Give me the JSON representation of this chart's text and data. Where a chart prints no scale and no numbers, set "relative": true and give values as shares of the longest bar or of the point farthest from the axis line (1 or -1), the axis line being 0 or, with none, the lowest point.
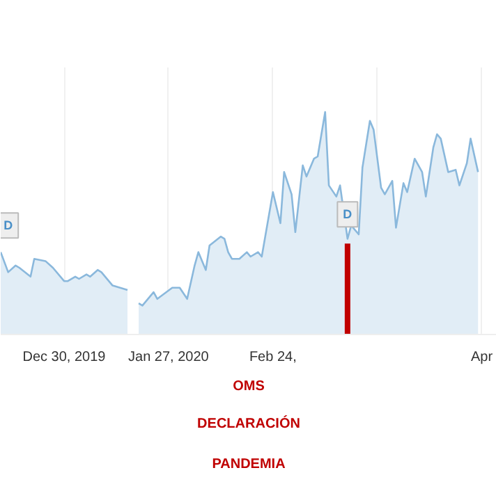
{
  "chart_data": {
    "type": "area",
    "relative": true,
    "grid": "x",
    "x": [
      "2019-12-13",
      "2019-12-15",
      "2019-12-17",
      "2019-12-18",
      "2019-12-21",
      "2019-12-22",
      "2019-12-25",
      "2019-12-27",
      "2019-12-30",
      "2019-12-31",
      "2020-01-02",
      "2020-01-03",
      "2020-01-05",
      "2020-01-06",
      "2020-01-08",
      "2020-01-09",
      "2020-01-12",
      "2020-01-14",
      "2020-01-16",
      "2020-01-17",
      "2020-01-19",
      "2020-01-20",
      "2020-01-23",
      "2020-01-24",
      "2020-01-28",
      "2020-01-30",
      "2020-02-01",
      "2020-02-03",
      "2020-02-04",
      "2020-02-06",
      "2020-02-07",
      "2020-02-10",
      "2020-02-11",
      "2020-02-12",
      "2020-02-13",
      "2020-02-15",
      "2020-02-17",
      "2020-02-18",
      "2020-02-20",
      "2020-02-21",
      "2020-02-24",
      "2020-02-26",
      "2020-02-27",
      "2020-02-29",
      "2020-03-01",
      "2020-03-03",
      "2020-03-04",
      "2020-03-06",
      "2020-03-07",
      "2020-03-09",
      "2020-03-10",
      "2020-03-12",
      "2020-03-13",
      "2020-03-15",
      "2020-03-16",
      "2020-03-18",
      "2020-03-19",
      "2020-03-21",
      "2020-03-22",
      "2020-03-24",
      "2020-03-25",
      "2020-03-27",
      "2020-03-28",
      "2020-03-30",
      "2020-03-31",
      "2020-04-02",
      "2020-04-04",
      "2020-04-05",
      "2020-04-07",
      "2020-04-08",
      "2020-04-09",
      "2020-04-11",
      "2020-04-13",
      "2020-04-14",
      "2020-04-16",
      "2020-04-17",
      "2020-04-19"
    ],
    "series": [
      {
        "color": "#8ab8dc",
        "values": [
          0.37,
          0.28,
          0.31,
          0.3,
          0.26,
          0.34,
          0.33,
          0.3,
          0.24,
          0.24,
          0.26,
          0.25,
          0.27,
          0.26,
          0.29,
          0.28,
          0.22,
          0.21,
          0.2,
          null,
          0.14,
          0.13,
          0.19,
          0.16,
          0.21,
          0.21,
          0.16,
          0.31,
          0.37,
          0.29,
          0.4,
          0.44,
          0.43,
          0.37,
          0.34,
          0.34,
          0.37,
          0.35,
          0.37,
          0.35,
          0.64,
          0.5,
          0.73,
          0.63,
          0.46,
          0.76,
          0.71,
          0.79,
          0.8,
          1,
          0.67,
          0.62,
          0.67,
          0.43,
          0.49,
          0.45,
          0.75,
          0.96,
          0.92,
          0.66,
          0.63,
          0.69,
          0.48,
          0.68,
          0.64,
          0.79,
          0.73,
          0.62,
          0.84,
          0.9,
          0.88,
          0.73,
          0.74,
          0.67,
          0.77,
          0.88,
          0.73
        ]
      }
    ],
    "xlim": [
      "2019-12-13",
      "2020-04-24"
    ],
    "xticks": [
      {
        "value": "2019-12-30",
        "label": "Dec 30, 2019"
      },
      {
        "value": "2020-01-27",
        "label": "Jan 27, 2020"
      },
      {
        "value": "2020-02-24",
        "label": "Feb 24,"
      },
      {
        "value": "2020-03-23",
        "label": null
      },
      {
        "value": "2020-04-20",
        "label": "Apr"
      }
    ],
    "ref_lines": [
      {
        "axis": "x",
        "value": "2020-03-15",
        "label": "OMS\nDECLARACIÓN\nPANDEMIA",
        "color": "#c00000"
      }
    ],
    "annotations": [
      {
        "text": "D",
        "x": "2019-12-15",
        "y": 0.49
      },
      {
        "text": "D",
        "x": "2020-03-15",
        "y": 0.54
      }
    ]
  }
}
